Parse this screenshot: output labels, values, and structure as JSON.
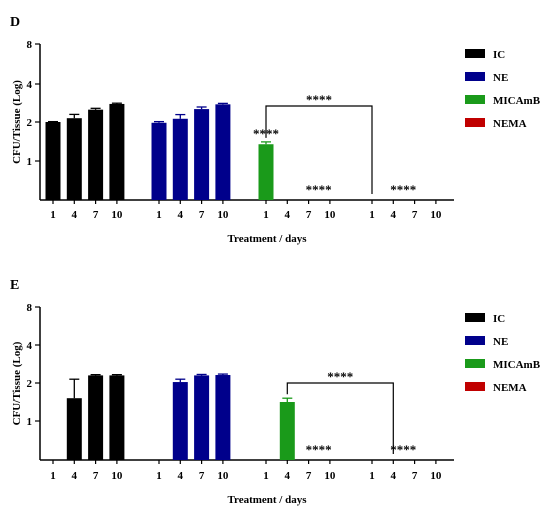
{
  "chart_data": [
    {
      "panel": "D",
      "type": "bar",
      "ylabel": "CFU/Tissue (Log)",
      "xlabel": "Treatment / days",
      "y_ticks": [
        "8",
        "4",
        "2",
        "1"
      ],
      "x_tick_labels": [
        "1",
        "4",
        "7",
        "10",
        "1",
        "4",
        "7",
        "10",
        "1",
        "4",
        "7",
        "10",
        "1",
        "4",
        "7",
        "10"
      ],
      "legend": [
        {
          "name": "IC",
          "color": "#000000"
        },
        {
          "name": "NE",
          "color": "#00008b"
        },
        {
          "name": "MICAmB",
          "color": "#1a9a1a"
        },
        {
          "name": "NEMA",
          "color": "#c00000"
        }
      ],
      "series": [
        {
          "name": "IC",
          "values": [
            2.0,
            2.2,
            2.65,
            2.95
          ],
          "errors": [
            0.02,
            0.2,
            0.07,
            0.04
          ]
        },
        {
          "name": "NE",
          "values": [
            1.98,
            2.17,
            2.68,
            2.93
          ],
          "errors": [
            0.04,
            0.22,
            0.11,
            0.05
          ]
        },
        {
          "name": "MICAmB",
          "values": [
            1.43,
            0,
            0,
            0
          ],
          "errors": [
            0.06,
            0,
            0,
            0
          ]
        },
        {
          "name": "NEMA",
          "values": [
            0,
            0,
            0,
            0
          ],
          "errors": [
            0,
            0,
            0,
            0
          ]
        }
      ],
      "annotations": [
        {
          "text": "****",
          "group": 2,
          "day": 0
        },
        {
          "text": "****",
          "group": 2,
          "day": 2
        },
        {
          "text": "****",
          "group": 3,
          "day": 1
        },
        {
          "text": "****",
          "bracket": [
            2,
            3
          ]
        }
      ]
    },
    {
      "panel": "E",
      "type": "bar",
      "ylabel": "CFU/Tissue (Log)",
      "xlabel": "Treatment / days",
      "y_ticks": [
        "8",
        "4",
        "2",
        "1"
      ],
      "x_tick_labels": [
        "1",
        "4",
        "7",
        "10",
        "1",
        "4",
        "7",
        "10",
        "1",
        "4",
        "7",
        "10",
        "1",
        "4",
        "7",
        "10"
      ],
      "legend": [
        {
          "name": "IC",
          "color": "#000000"
        },
        {
          "name": "NE",
          "color": "#00008b"
        },
        {
          "name": "MICAmB",
          "color": "#1a9a1a"
        },
        {
          "name": "NEMA",
          "color": "#c00000"
        }
      ],
      "series": [
        {
          "name": "IC",
          "values": [
            0,
            1.6,
            2.4,
            2.4
          ],
          "errors": [
            0,
            0.6,
            0.04,
            0.04
          ]
        },
        {
          "name": "NE",
          "values": [
            0,
            2.05,
            2.4,
            2.42
          ],
          "errors": [
            0,
            0.15,
            0.05,
            0.05
          ]
        },
        {
          "name": "MICAmB",
          "values": [
            0,
            1.5,
            0,
            0
          ],
          "errors": [
            0,
            0.1,
            0,
            0
          ]
        },
        {
          "name": "NEMA",
          "values": [
            0,
            0,
            0,
            0
          ],
          "errors": [
            0,
            0,
            0,
            0
          ]
        }
      ],
      "annotations": [
        {
          "text": "****",
          "group": 2,
          "day": 2
        },
        {
          "text": "****",
          "group": 3,
          "day": 1
        },
        {
          "text": "****",
          "bracket": [
            2,
            3
          ]
        }
      ]
    }
  ]
}
